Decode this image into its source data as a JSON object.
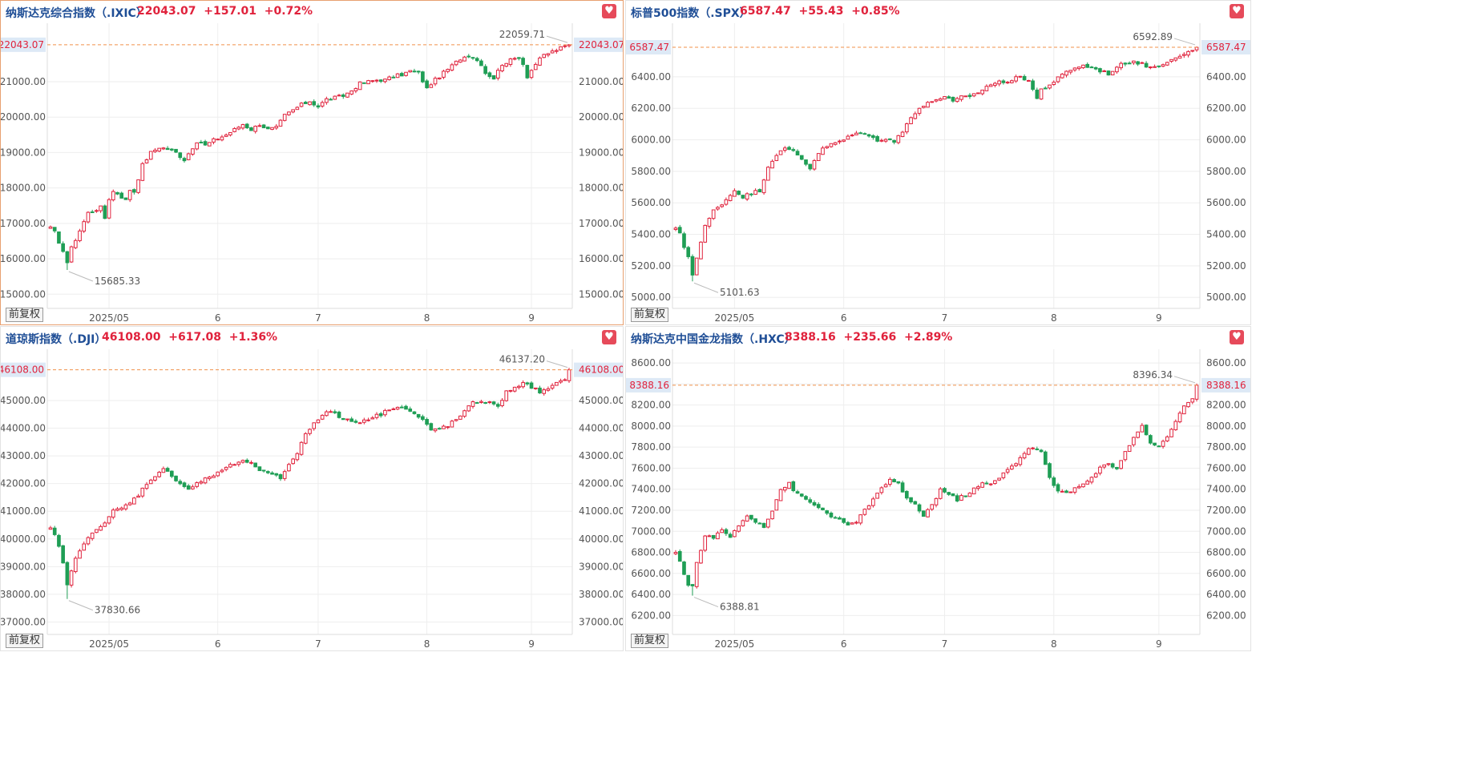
{
  "chart_data": [
    {
      "type": "candlestick",
      "title": "纳斯达克综合指数（.IXIC）",
      "price": "22043.07",
      "change": "+157.01",
      "change_pct": "+0.72%",
      "last_label": "22043.07",
      "high_label": "22059.71",
      "low_label": "15685.33",
      "ylim": [
        14600,
        22650
      ],
      "yticks": [
        15000,
        16000,
        17000,
        18000,
        19000,
        20000,
        21000
      ],
      "ytick_labels": [
        "15000.00",
        "16000.00",
        "17000.00",
        "18000.00",
        "19000.00",
        "20000.00",
        "21000.00"
      ],
      "xticks": [
        {
          "i": 14,
          "label": "2025/05"
        },
        {
          "i": 40,
          "label": "6"
        },
        {
          "i": 64,
          "label": "7"
        },
        {
          "i": 90,
          "label": "8"
        },
        {
          "i": 115,
          "label": "9"
        }
      ],
      "n_sessions": 125,
      "anchors": [
        [
          0,
          16900
        ],
        [
          1,
          16750
        ],
        [
          2,
          16400
        ],
        [
          3,
          16250
        ],
        [
          4,
          15900
        ],
        [
          5,
          16300
        ],
        [
          7,
          16800
        ],
        [
          9,
          17300
        ],
        [
          12,
          17450
        ],
        [
          13,
          17150
        ],
        [
          14,
          17700
        ],
        [
          15,
          17900
        ],
        [
          16,
          17850
        ],
        [
          17,
          17750
        ],
        [
          18,
          17650
        ],
        [
          19,
          17950
        ],
        [
          20,
          17900
        ],
        [
          22,
          18650
        ],
        [
          24,
          19000
        ],
        [
          26,
          19150
        ],
        [
          28,
          19100
        ],
        [
          29,
          19050
        ],
        [
          30,
          19000
        ],
        [
          32,
          18800
        ],
        [
          34,
          19150
        ],
        [
          36,
          19300
        ],
        [
          37,
          19200
        ],
        [
          39,
          19350
        ],
        [
          41,
          19450
        ],
        [
          42,
          19500
        ],
        [
          44,
          19650
        ],
        [
          46,
          19800
        ],
        [
          48,
          19650
        ],
        [
          50,
          19800
        ],
        [
          52,
          19650
        ],
        [
          54,
          19700
        ],
        [
          56,
          20050
        ],
        [
          58,
          20200
        ],
        [
          60,
          20350
        ],
        [
          62,
          20450
        ],
        [
          64,
          20300
        ],
        [
          66,
          20500
        ],
        [
          68,
          20550
        ],
        [
          70,
          20600
        ],
        [
          72,
          20750
        ],
        [
          74,
          20950
        ],
        [
          76,
          21000
        ],
        [
          78,
          21050
        ],
        [
          80,
          21050
        ],
        [
          82,
          21150
        ],
        [
          84,
          21200
        ],
        [
          86,
          21300
        ],
        [
          88,
          21250
        ],
        [
          90,
          20800
        ],
        [
          91,
          20950
        ],
        [
          92,
          21050
        ],
        [
          94,
          21250
        ],
        [
          96,
          21450
        ],
        [
          98,
          21650
        ],
        [
          100,
          21750
        ],
        [
          101,
          21700
        ],
        [
          102,
          21600
        ],
        [
          103,
          21500
        ],
        [
          104,
          21250
        ],
        [
          106,
          21100
        ],
        [
          108,
          21500
        ],
        [
          110,
          21600
        ],
        [
          112,
          21700
        ],
        [
          113,
          21500
        ],
        [
          114,
          21150
        ],
        [
          116,
          21500
        ],
        [
          118,
          21750
        ],
        [
          120,
          21850
        ],
        [
          122,
          21950
        ],
        [
          124,
          22043
        ]
      ],
      "high": {
        "i": 124,
        "v": 22059.71
      },
      "low": {
        "i": 4,
        "v": 15685.33
      }
    },
    {
      "type": "candlestick",
      "title": "标普500指数（.SPX）",
      "price": "6587.47",
      "change": "+55.43",
      "change_pct": "+0.85%",
      "last_label": "6587.47",
      "high_label": "6592.89",
      "low_label": "5101.63",
      "ylim": [
        4930,
        6740
      ],
      "yticks": [
        5000,
        5200,
        5400,
        5600,
        5800,
        6000,
        6200,
        6400
      ],
      "ytick_labels": [
        "5000.00",
        "5200.00",
        "5400.00",
        "5600.00",
        "5800.00",
        "6000.00",
        "6200.00",
        "6400.00"
      ],
      "xticks": [
        {
          "i": 14,
          "label": "2025/05"
        },
        {
          "i": 40,
          "label": "6"
        },
        {
          "i": 64,
          "label": "7"
        },
        {
          "i": 90,
          "label": "8"
        },
        {
          "i": 115,
          "label": "9"
        }
      ],
      "n_sessions": 125,
      "anchors": [
        [
          0,
          5440
        ],
        [
          1,
          5400
        ],
        [
          2,
          5320
        ],
        [
          3,
          5260
        ],
        [
          4,
          5150
        ],
        [
          5,
          5250
        ],
        [
          7,
          5450
        ],
        [
          9,
          5550
        ],
        [
          12,
          5620
        ],
        [
          14,
          5680
        ],
        [
          16,
          5640
        ],
        [
          18,
          5660
        ],
        [
          20,
          5680
        ],
        [
          22,
          5830
        ],
        [
          24,
          5910
        ],
        [
          26,
          5940
        ],
        [
          28,
          5930
        ],
        [
          30,
          5880
        ],
        [
          32,
          5820
        ],
        [
          34,
          5920
        ],
        [
          36,
          5960
        ],
        [
          38,
          5980
        ],
        [
          40,
          6000
        ],
        [
          42,
          6030
        ],
        [
          44,
          6050
        ],
        [
          46,
          6020
        ],
        [
          48,
          6000
        ],
        [
          50,
          6010
        ],
        [
          52,
          5990
        ],
        [
          54,
          6050
        ],
        [
          56,
          6150
        ],
        [
          58,
          6200
        ],
        [
          60,
          6230
        ],
        [
          62,
          6260
        ],
        [
          64,
          6270
        ],
        [
          66,
          6240
        ],
        [
          68,
          6270
        ],
        [
          70,
          6280
        ],
        [
          72,
          6300
        ],
        [
          74,
          6340
        ],
        [
          76,
          6360
        ],
        [
          78,
          6370
        ],
        [
          80,
          6380
        ],
        [
          82,
          6400
        ],
        [
          84,
          6380
        ],
        [
          86,
          6260
        ],
        [
          87,
          6320
        ],
        [
          89,
          6350
        ],
        [
          91,
          6390
        ],
        [
          93,
          6430
        ],
        [
          95,
          6460
        ],
        [
          97,
          6470
        ],
        [
          99,
          6460
        ],
        [
          101,
          6440
        ],
        [
          103,
          6420
        ],
        [
          105,
          6460
        ],
        [
          107,
          6490
        ],
        [
          109,
          6500
        ],
        [
          111,
          6480
        ],
        [
          113,
          6460
        ],
        [
          115,
          6470
        ],
        [
          117,
          6500
        ],
        [
          119,
          6530
        ],
        [
          121,
          6540
        ],
        [
          123,
          6570
        ],
        [
          124,
          6587
        ]
      ],
      "high": {
        "i": 124,
        "v": 6592.89
      },
      "low": {
        "i": 4,
        "v": 5101.63
      }
    },
    {
      "type": "candlestick",
      "title": "道琼斯指数（.DJI）",
      "price": "46108.00",
      "change": "+617.08",
      "change_pct": "+1.36%",
      "last_label": "46108.00",
      "high_label": "46137.20",
      "low_label": "37830.66",
      "ylim": [
        36550,
        46850
      ],
      "yticks": [
        37000,
        38000,
        39000,
        40000,
        41000,
        42000,
        43000,
        44000,
        45000
      ],
      "ytick_labels": [
        "37000.00",
        "38000.00",
        "39000.00",
        "40000.00",
        "41000.00",
        "42000.00",
        "43000.00",
        "44000.00",
        "45000.00"
      ],
      "xticks": [
        {
          "i": 14,
          "label": "2025/05"
        },
        {
          "i": 40,
          "label": "6"
        },
        {
          "i": 64,
          "label": "7"
        },
        {
          "i": 90,
          "label": "8"
        },
        {
          "i": 115,
          "label": "9"
        }
      ],
      "n_sessions": 125,
      "anchors": [
        [
          0,
          40400
        ],
        [
          1,
          40100
        ],
        [
          2,
          39700
        ],
        [
          3,
          39100
        ],
        [
          4,
          38300
        ],
        [
          5,
          38900
        ],
        [
          7,
          39600
        ],
        [
          9,
          40000
        ],
        [
          11,
          40400
        ],
        [
          13,
          40600
        ],
        [
          15,
          41000
        ],
        [
          17,
          41100
        ],
        [
          19,
          41300
        ],
        [
          21,
          41600
        ],
        [
          23,
          42000
        ],
        [
          25,
          42300
        ],
        [
          27,
          42500
        ],
        [
          29,
          42300
        ],
        [
          31,
          42000
        ],
        [
          33,
          41800
        ],
        [
          35,
          42000
        ],
        [
          37,
          42150
        ],
        [
          39,
          42300
        ],
        [
          41,
          42500
        ],
        [
          43,
          42650
        ],
        [
          45,
          42750
        ],
        [
          47,
          42800
        ],
        [
          49,
          42600
        ],
        [
          51,
          42400
        ],
        [
          53,
          42300
        ],
        [
          55,
          42200
        ],
        [
          57,
          42700
        ],
        [
          59,
          43100
        ],
        [
          61,
          43800
        ],
        [
          63,
          44200
        ],
        [
          65,
          44500
        ],
        [
          67,
          44600
        ],
        [
          69,
          44400
        ],
        [
          71,
          44300
        ],
        [
          73,
          44200
        ],
        [
          75,
          44300
        ],
        [
          77,
          44400
        ],
        [
          79,
          44500
        ],
        [
          81,
          44700
        ],
        [
          83,
          44800
        ],
        [
          85,
          44700
        ],
        [
          87,
          44500
        ],
        [
          89,
          44300
        ],
        [
          91,
          43900
        ],
        [
          93,
          44000
        ],
        [
          95,
          44100
        ],
        [
          97,
          44300
        ],
        [
          99,
          44600
        ],
        [
          101,
          44900
        ],
        [
          103,
          45000
        ],
        [
          105,
          44900
        ],
        [
          107,
          44800
        ],
        [
          109,
          45300
        ],
        [
          111,
          45500
        ],
        [
          113,
          45600
        ],
        [
          115,
          45500
        ],
        [
          117,
          45300
        ],
        [
          119,
          45400
        ],
        [
          121,
          45600
        ],
        [
          123,
          45800
        ],
        [
          124,
          46108
        ]
      ],
      "high": {
        "i": 124,
        "v": 46137.2
      },
      "low": {
        "i": 4,
        "v": 37830.66
      }
    },
    {
      "type": "candlestick",
      "title": "纳斯达克中国金龙指数（.HXC）",
      "price": "8388.16",
      "change": "+235.66",
      "change_pct": "+2.89%",
      "last_label": "8388.16",
      "high_label": "8396.34",
      "low_label": "6388.81",
      "ylim": [
        6020,
        8730
      ],
      "yticks": [
        6200,
        6400,
        6600,
        6800,
        7000,
        7200,
        7400,
        7600,
        7800,
        8000,
        8200,
        8400,
        8600
      ],
      "ytick_labels": [
        "6200.00",
        "6400.00",
        "6600.00",
        "6800.00",
        "7000.00",
        "7200.00",
        "7400.00",
        "7600.00",
        "7800.00",
        "8000.00",
        "8200.00",
        "8400.00",
        "8600.00"
      ],
      "xticks": [
        {
          "i": 14,
          "label": "2025/05"
        },
        {
          "i": 40,
          "label": "6"
        },
        {
          "i": 64,
          "label": "7"
        },
        {
          "i": 90,
          "label": "8"
        },
        {
          "i": 115,
          "label": "9"
        }
      ],
      "n_sessions": 125,
      "anchors": [
        [
          0,
          6800
        ],
        [
          1,
          6700
        ],
        [
          2,
          6600
        ],
        [
          3,
          6500
        ],
        [
          4,
          6480
        ],
        [
          5,
          6700
        ],
        [
          7,
          6950
        ],
        [
          9,
          6950
        ],
        [
          11,
          7000
        ],
        [
          13,
          6950
        ],
        [
          15,
          7050
        ],
        [
          17,
          7150
        ],
        [
          19,
          7100
        ],
        [
          21,
          7050
        ],
        [
          23,
          7200
        ],
        [
          25,
          7400
        ],
        [
          27,
          7450
        ],
        [
          29,
          7350
        ],
        [
          31,
          7300
        ],
        [
          33,
          7250
        ],
        [
          35,
          7200
        ],
        [
          37,
          7150
        ],
        [
          39,
          7100
        ],
        [
          41,
          7050
        ],
        [
          43,
          7100
        ],
        [
          45,
          7200
        ],
        [
          47,
          7300
        ],
        [
          49,
          7400
        ],
        [
          51,
          7500
        ],
        [
          53,
          7450
        ],
        [
          55,
          7300
        ],
        [
          57,
          7250
        ],
        [
          59,
          7150
        ],
        [
          61,
          7250
        ],
        [
          63,
          7400
        ],
        [
          65,
          7350
        ],
        [
          67,
          7300
        ],
        [
          69,
          7350
        ],
        [
          71,
          7400
        ],
        [
          73,
          7450
        ],
        [
          75,
          7450
        ],
        [
          77,
          7500
        ],
        [
          79,
          7600
        ],
        [
          81,
          7650
        ],
        [
          83,
          7750
        ],
        [
          85,
          7800
        ],
        [
          87,
          7750
        ],
        [
          89,
          7500
        ],
        [
          91,
          7380
        ],
        [
          93,
          7380
        ],
        [
          95,
          7400
        ],
        [
          97,
          7450
        ],
        [
          99,
          7500
        ],
        [
          101,
          7600
        ],
        [
          103,
          7650
        ],
        [
          105,
          7600
        ],
        [
          107,
          7750
        ],
        [
          109,
          7900
        ],
        [
          111,
          8000
        ],
        [
          113,
          7850
        ],
        [
          115,
          7800
        ],
        [
          117,
          7900
        ],
        [
          119,
          8050
        ],
        [
          121,
          8200
        ],
        [
          123,
          8250
        ],
        [
          124,
          8388
        ]
      ],
      "high": {
        "i": 124,
        "v": 8396.34
      },
      "low": {
        "i": 4,
        "v": 6388.81
      }
    }
  ],
  "ui": {
    "qfq_label": "前复权",
    "fav_glyph": "♥"
  },
  "colors": {
    "up": "#e0223c",
    "down": "#1f9e55",
    "title": "#1f4e96",
    "last_line": "#f0904a",
    "last_label_bg": "#dde9f6",
    "grid": "#eeeeee"
  }
}
